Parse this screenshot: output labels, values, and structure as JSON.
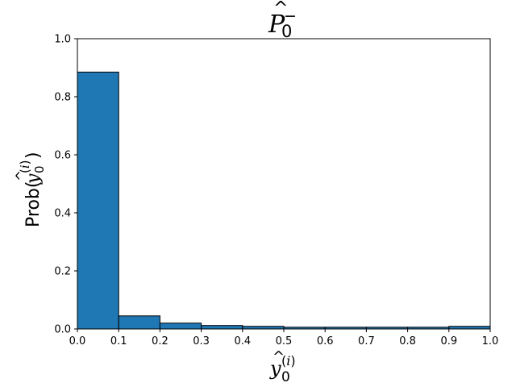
{
  "chart_data": {
    "type": "bar",
    "title": "P̂₀⁻",
    "xlabel": "ŷ₀⁽ⁱ⁾",
    "ylabel": "Prob(ŷ₀⁽ⁱ⁾)",
    "xlim": [
      0.0,
      1.0
    ],
    "ylim": [
      0.0,
      1.0
    ],
    "bin_edges": [
      0.0,
      0.1,
      0.2,
      0.3,
      0.4,
      0.5,
      0.6,
      0.7,
      0.8,
      0.9,
      1.0
    ],
    "values": [
      0.885,
      0.045,
      0.02,
      0.012,
      0.009,
      0.006,
      0.006,
      0.006,
      0.006,
      0.009
    ],
    "x_ticks": [
      "0.0",
      "0.1",
      "0.2",
      "0.3",
      "0.4",
      "0.5",
      "0.6",
      "0.7",
      "0.8",
      "0.9",
      "1.0"
    ],
    "y_ticks": [
      "0.0",
      "0.2",
      "0.4",
      "0.6",
      "0.8",
      "1.0"
    ],
    "bar_color": "#1f77b4",
    "edge_color": "#000000",
    "grid": false
  }
}
